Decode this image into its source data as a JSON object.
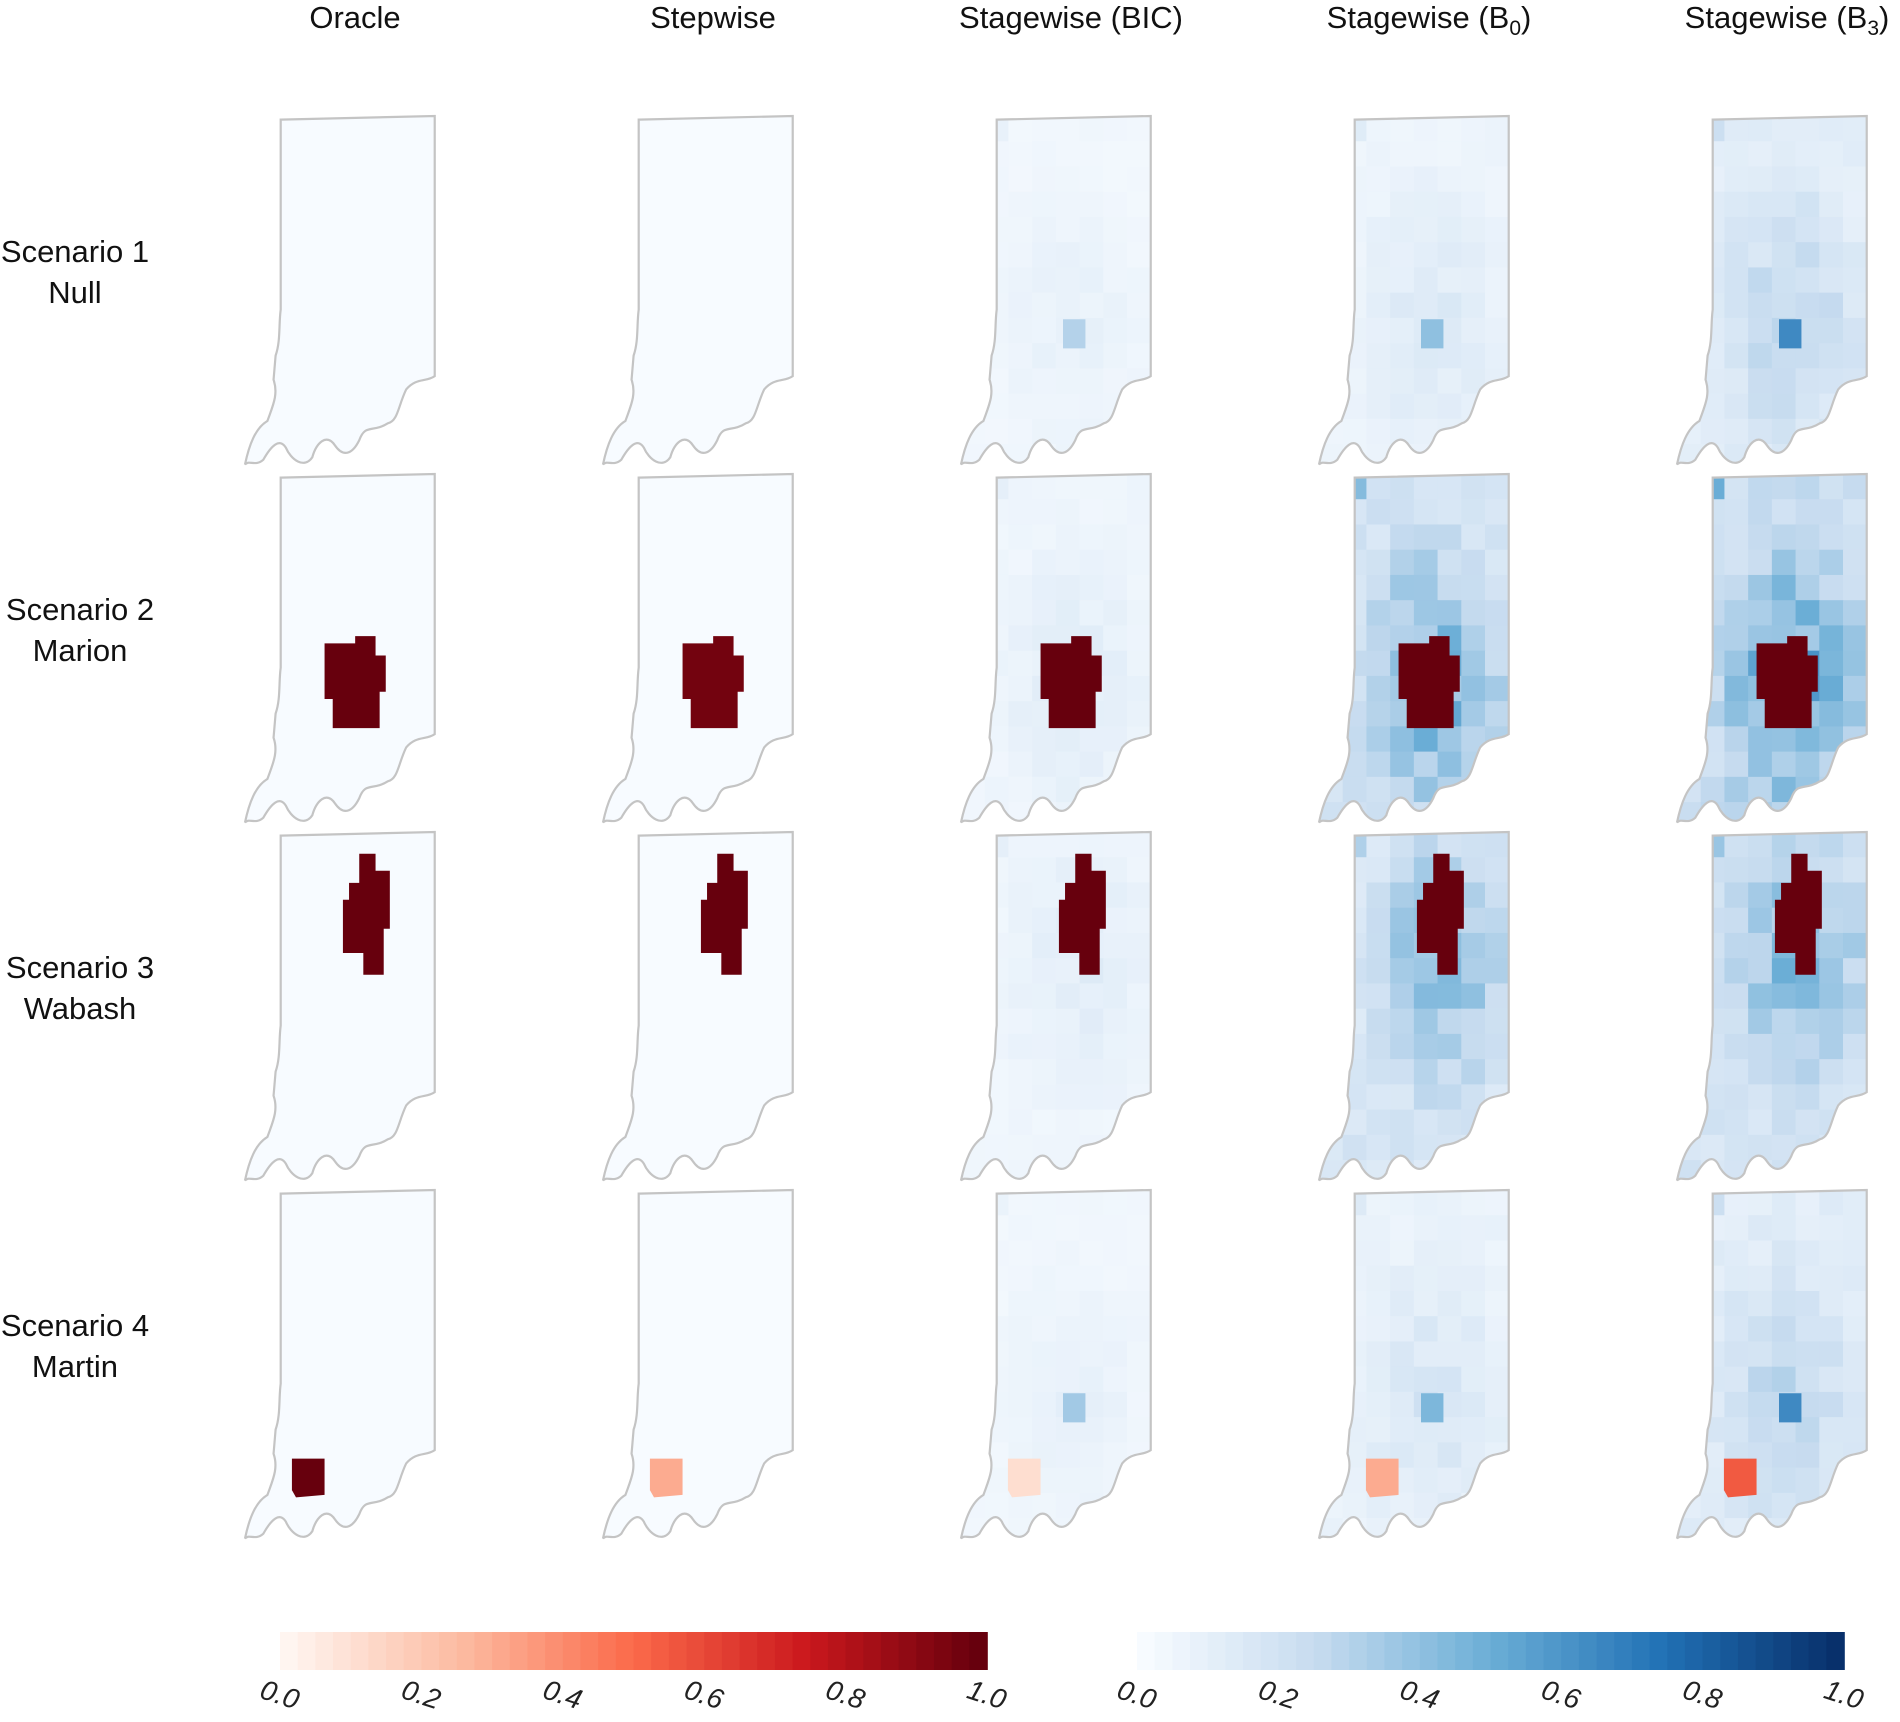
{
  "chart_data": {
    "type": "heatmap",
    "columns": [
      "Oracle",
      "Stepwise",
      "Stagewise (BIC)",
      "Stagewise (B0)",
      "Stagewise (B3)"
    ],
    "rows": [
      {
        "title": "Scenario 1",
        "subtitle": "Null"
      },
      {
        "title": "Scenario 2",
        "subtitle": "Marion"
      },
      {
        "title": "Scenario 3",
        "subtitle": "Wabash"
      },
      {
        "title": "Scenario 4",
        "subtitle": "Martin"
      }
    ],
    "panels": [
      [
        {
          "cluster": null,
          "cluster_value": 0,
          "cluster_scale": "red",
          "background_level": 0.0
        },
        {
          "cluster": null,
          "cluster_value": 0,
          "cluster_scale": "red",
          "background_level": 0.0
        },
        {
          "cluster": null,
          "cluster_value": 0,
          "cluster_scale": "red",
          "background_level": 0.06,
          "peak": {
            "location": "center",
            "value": 0.3
          }
        },
        {
          "cluster": null,
          "cluster_value": 0,
          "cluster_scale": "red",
          "background_level": 0.1,
          "peak": {
            "location": "center",
            "value": 0.4
          }
        },
        {
          "cluster": null,
          "cluster_value": 0,
          "cluster_scale": "red",
          "background_level": 0.2,
          "peak": {
            "location": "center",
            "value": 0.65
          }
        }
      ],
      [
        {
          "cluster": "Marion",
          "cluster_value": 1.0,
          "cluster_scale": "red",
          "background_level": 0.0
        },
        {
          "cluster": "Marion",
          "cluster_value": 0.97,
          "cluster_scale": "red",
          "background_level": 0.0
        },
        {
          "cluster": "Marion",
          "cluster_value": 1.0,
          "cluster_scale": "red",
          "background_level": 0.08
        },
        {
          "cluster": "Marion",
          "cluster_value": 1.0,
          "cluster_scale": "red",
          "background_level": 0.35
        },
        {
          "cluster": "Marion",
          "cluster_value": 1.0,
          "cluster_scale": "red",
          "background_level": 0.4
        }
      ],
      [
        {
          "cluster": "Wabash",
          "cluster_value": 1.0,
          "cluster_scale": "red",
          "background_level": 0.0
        },
        {
          "cluster": "Wabash",
          "cluster_value": 1.0,
          "cluster_scale": "red",
          "background_level": 0.0
        },
        {
          "cluster": "Wabash",
          "cluster_value": 1.0,
          "cluster_scale": "red",
          "background_level": 0.08
        },
        {
          "cluster": "Wabash",
          "cluster_value": 1.0,
          "cluster_scale": "red",
          "background_level": 0.3
        },
        {
          "cluster": "Wabash",
          "cluster_value": 1.0,
          "cluster_scale": "red",
          "background_level": 0.32
        }
      ],
      [
        {
          "cluster": "Martin",
          "cluster_value": 1.0,
          "cluster_scale": "red",
          "background_level": 0.0
        },
        {
          "cluster": "Martin",
          "cluster_value": 0.3,
          "cluster_scale": "red",
          "background_level": 0.0
        },
        {
          "cluster": "Martin",
          "cluster_value": 0.1,
          "cluster_scale": "red",
          "background_level": 0.06,
          "peak": {
            "location": "center",
            "value": 0.35
          }
        },
        {
          "cluster": "Martin",
          "cluster_value": 0.3,
          "cluster_scale": "red",
          "background_level": 0.12,
          "peak": {
            "location": "center",
            "value": 0.45
          }
        },
        {
          "cluster": "Martin",
          "cluster_value": 0.55,
          "cluster_scale": "red",
          "background_level": 0.2,
          "peak": {
            "location": "center",
            "value": 0.65
          }
        }
      ]
    ],
    "colorbars": [
      {
        "name": "red",
        "range": [
          0.0,
          1.0
        ],
        "ticks": [
          "0.0",
          "0.2",
          "0.4",
          "0.6",
          "0.8",
          "1.0"
        ],
        "stops": [
          "#fff5f0",
          "#fcbba1",
          "#fb6a4a",
          "#cb181d",
          "#67000d"
        ]
      },
      {
        "name": "blue",
        "range": [
          0.0,
          1.0
        ],
        "ticks": [
          "0.0",
          "0.2",
          "0.4",
          "0.6",
          "0.8",
          "1.0"
        ],
        "stops": [
          "#f7fbff",
          "#c6dbef",
          "#6baed6",
          "#2171b5",
          "#08306b"
        ]
      }
    ]
  }
}
